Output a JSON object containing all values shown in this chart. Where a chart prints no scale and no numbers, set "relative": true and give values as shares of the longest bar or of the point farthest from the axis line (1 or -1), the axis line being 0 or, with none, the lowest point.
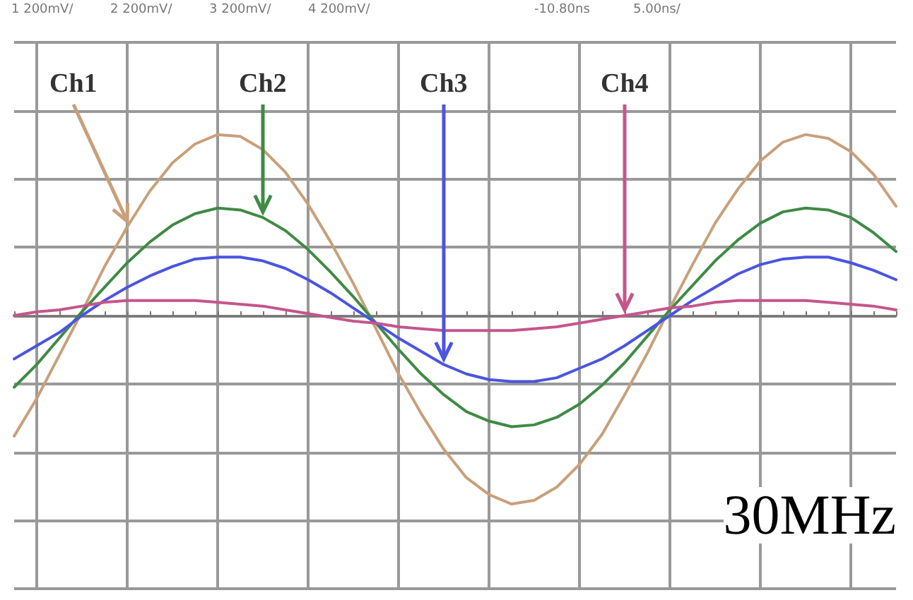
{
  "chart_data": {
    "type": "line",
    "relative": true,
    "grid": true,
    "legend": false,
    "marker": "none",
    "line_style": "solid",
    "annotations": [
      "1 200mV/",
      "2 200mV/",
      "3 200mV/",
      "4 200mV/",
      "-10.80ns",
      "5.00ns/",
      "30MHz"
    ],
    "categories": [
      null,
      null,
      null,
      null,
      null,
      null,
      null,
      null,
      null,
      null,
      null,
      null,
      null,
      null,
      null,
      null,
      null,
      null,
      null,
      null,
      null,
      null,
      null,
      null,
      null,
      null,
      null,
      null,
      null,
      null,
      null,
      null,
      null,
      null,
      null,
      null,
      null,
      null,
      null,
      null
    ],
    "series": [
      {
        "name": "Ch1",
        "color": "#c8a07a",
        "values": [
          -0.64,
          -0.44,
          -0.21,
          0.02,
          0.26,
          0.47,
          0.66,
          0.81,
          0.91,
          0.96,
          0.95,
          0.88,
          0.76,
          0.59,
          0.39,
          0.17,
          -0.07,
          -0.31,
          -0.52,
          -0.71,
          -0.86,
          -0.95,
          -1.0,
          -0.98,
          -0.91,
          -0.79,
          -0.63,
          -0.42,
          -0.2,
          0.04,
          0.27,
          0.49,
          0.67,
          0.82,
          0.92,
          0.96,
          0.94,
          0.87,
          0.75,
          0.58
        ]
      },
      {
        "name": "Ch2",
        "color": "#3f8a45",
        "values": [
          -0.38,
          -0.26,
          -0.12,
          0.02,
          0.15,
          0.28,
          0.39,
          0.48,
          0.54,
          0.57,
          0.56,
          0.52,
          0.45,
          0.35,
          0.23,
          0.1,
          -0.04,
          -0.18,
          -0.31,
          -0.42,
          -0.51,
          -0.56,
          -0.59,
          -0.58,
          -0.54,
          -0.47,
          -0.37,
          -0.25,
          -0.11,
          0.03,
          0.16,
          0.29,
          0.4,
          0.49,
          0.55,
          0.57,
          0.56,
          0.52,
          0.44,
          0.34
        ]
      },
      {
        "name": "Ch3",
        "color": "#4a55e0",
        "values": [
          -0.23,
          -0.16,
          -0.09,
          0.0,
          0.08,
          0.15,
          0.21,
          0.26,
          0.3,
          0.31,
          0.31,
          0.29,
          0.25,
          0.19,
          0.12,
          0.04,
          -0.04,
          -0.12,
          -0.19,
          -0.26,
          -0.31,
          -0.34,
          -0.35,
          -0.35,
          -0.33,
          -0.28,
          -0.23,
          -0.16,
          -0.08,
          0.0,
          0.08,
          0.15,
          0.22,
          0.27,
          0.3,
          0.31,
          0.31,
          0.28,
          0.24,
          0.19
        ]
      },
      {
        "name": "Ch4",
        "color": "#c4568c",
        "values": [
          0.0,
          0.02,
          0.03,
          0.05,
          0.07,
          0.08,
          0.08,
          0.08,
          0.08,
          0.07,
          0.06,
          0.05,
          0.03,
          0.01,
          -0.01,
          -0.03,
          -0.04,
          -0.06,
          -0.07,
          -0.08,
          -0.08,
          -0.08,
          -0.08,
          -0.07,
          -0.06,
          -0.04,
          -0.02,
          0.0,
          0.02,
          0.04,
          0.05,
          0.07,
          0.08,
          0.08,
          0.08,
          0.08,
          0.07,
          0.06,
          0.05,
          0.03
        ]
      }
    ]
  }
}
